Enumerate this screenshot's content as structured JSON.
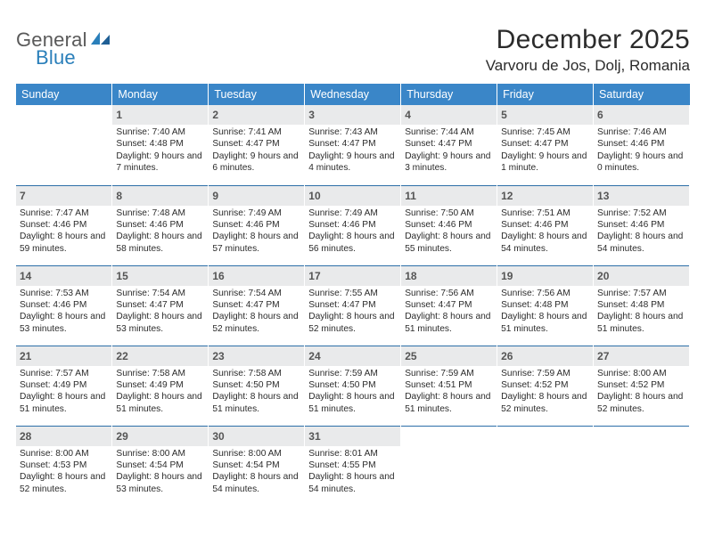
{
  "brand": {
    "part1": "General",
    "part2": "Blue"
  },
  "title": "December 2025",
  "location": "Varvoru de Jos, Dolj, Romania",
  "colors": {
    "header_bg": "#3a86c8",
    "header_text": "#ffffff",
    "daynum_bg": "#e9eaeb",
    "week_divider": "#2c6fa8",
    "logo_gray": "#595959",
    "logo_blue": "#2a7fba",
    "body_text": "#2b2b2b"
  },
  "weekdays": [
    "Sunday",
    "Monday",
    "Tuesday",
    "Wednesday",
    "Thursday",
    "Friday",
    "Saturday"
  ],
  "first_weekday_index": 1,
  "days": [
    {
      "n": 1,
      "sunrise": "7:40 AM",
      "sunset": "4:48 PM",
      "daylight": "9 hours and 7 minutes."
    },
    {
      "n": 2,
      "sunrise": "7:41 AM",
      "sunset": "4:47 PM",
      "daylight": "9 hours and 6 minutes."
    },
    {
      "n": 3,
      "sunrise": "7:43 AM",
      "sunset": "4:47 PM",
      "daylight": "9 hours and 4 minutes."
    },
    {
      "n": 4,
      "sunrise": "7:44 AM",
      "sunset": "4:47 PM",
      "daylight": "9 hours and 3 minutes."
    },
    {
      "n": 5,
      "sunrise": "7:45 AM",
      "sunset": "4:47 PM",
      "daylight": "9 hours and 1 minute."
    },
    {
      "n": 6,
      "sunrise": "7:46 AM",
      "sunset": "4:46 PM",
      "daylight": "9 hours and 0 minutes."
    },
    {
      "n": 7,
      "sunrise": "7:47 AM",
      "sunset": "4:46 PM",
      "daylight": "8 hours and 59 minutes."
    },
    {
      "n": 8,
      "sunrise": "7:48 AM",
      "sunset": "4:46 PM",
      "daylight": "8 hours and 58 minutes."
    },
    {
      "n": 9,
      "sunrise": "7:49 AM",
      "sunset": "4:46 PM",
      "daylight": "8 hours and 57 minutes."
    },
    {
      "n": 10,
      "sunrise": "7:49 AM",
      "sunset": "4:46 PM",
      "daylight": "8 hours and 56 minutes."
    },
    {
      "n": 11,
      "sunrise": "7:50 AM",
      "sunset": "4:46 PM",
      "daylight": "8 hours and 55 minutes."
    },
    {
      "n": 12,
      "sunrise": "7:51 AM",
      "sunset": "4:46 PM",
      "daylight": "8 hours and 54 minutes."
    },
    {
      "n": 13,
      "sunrise": "7:52 AM",
      "sunset": "4:46 PM",
      "daylight": "8 hours and 54 minutes."
    },
    {
      "n": 14,
      "sunrise": "7:53 AM",
      "sunset": "4:46 PM",
      "daylight": "8 hours and 53 minutes."
    },
    {
      "n": 15,
      "sunrise": "7:54 AM",
      "sunset": "4:47 PM",
      "daylight": "8 hours and 53 minutes."
    },
    {
      "n": 16,
      "sunrise": "7:54 AM",
      "sunset": "4:47 PM",
      "daylight": "8 hours and 52 minutes."
    },
    {
      "n": 17,
      "sunrise": "7:55 AM",
      "sunset": "4:47 PM",
      "daylight": "8 hours and 52 minutes."
    },
    {
      "n": 18,
      "sunrise": "7:56 AM",
      "sunset": "4:47 PM",
      "daylight": "8 hours and 51 minutes."
    },
    {
      "n": 19,
      "sunrise": "7:56 AM",
      "sunset": "4:48 PM",
      "daylight": "8 hours and 51 minutes."
    },
    {
      "n": 20,
      "sunrise": "7:57 AM",
      "sunset": "4:48 PM",
      "daylight": "8 hours and 51 minutes."
    },
    {
      "n": 21,
      "sunrise": "7:57 AM",
      "sunset": "4:49 PM",
      "daylight": "8 hours and 51 minutes."
    },
    {
      "n": 22,
      "sunrise": "7:58 AM",
      "sunset": "4:49 PM",
      "daylight": "8 hours and 51 minutes."
    },
    {
      "n": 23,
      "sunrise": "7:58 AM",
      "sunset": "4:50 PM",
      "daylight": "8 hours and 51 minutes."
    },
    {
      "n": 24,
      "sunrise": "7:59 AM",
      "sunset": "4:50 PM",
      "daylight": "8 hours and 51 minutes."
    },
    {
      "n": 25,
      "sunrise": "7:59 AM",
      "sunset": "4:51 PM",
      "daylight": "8 hours and 51 minutes."
    },
    {
      "n": 26,
      "sunrise": "7:59 AM",
      "sunset": "4:52 PM",
      "daylight": "8 hours and 52 minutes."
    },
    {
      "n": 27,
      "sunrise": "8:00 AM",
      "sunset": "4:52 PM",
      "daylight": "8 hours and 52 minutes."
    },
    {
      "n": 28,
      "sunrise": "8:00 AM",
      "sunset": "4:53 PM",
      "daylight": "8 hours and 52 minutes."
    },
    {
      "n": 29,
      "sunrise": "8:00 AM",
      "sunset": "4:54 PM",
      "daylight": "8 hours and 53 minutes."
    },
    {
      "n": 30,
      "sunrise": "8:00 AM",
      "sunset": "4:54 PM",
      "daylight": "8 hours and 54 minutes."
    },
    {
      "n": 31,
      "sunrise": "8:01 AM",
      "sunset": "4:55 PM",
      "daylight": "8 hours and 54 minutes."
    }
  ],
  "labels": {
    "sunrise": "Sunrise:",
    "sunset": "Sunset:",
    "daylight": "Daylight:"
  }
}
